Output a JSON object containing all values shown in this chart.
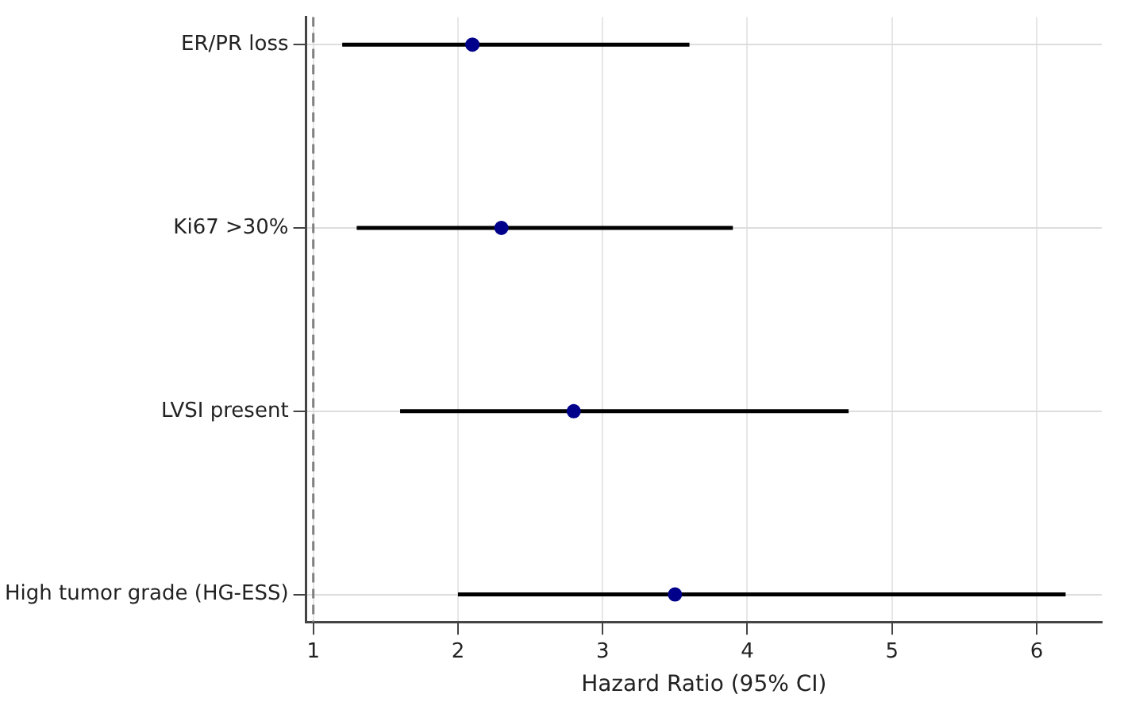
{
  "chart_data": {
    "type": "scatter",
    "orientation": "horizontal",
    "xlabel": "Hazard Ratio (95% CI)",
    "categories": [
      "ER/PR loss",
      "Ki67 >30%",
      "LVSI present",
      "High tumor grade (HG-ESS)"
    ],
    "values": [
      2.1,
      2.3,
      2.8,
      3.5
    ],
    "errors": [
      [
        1.2,
        3.6
      ],
      [
        1.3,
        3.9
      ],
      [
        1.6,
        4.7
      ],
      [
        2.0,
        6.2
      ]
    ],
    "color": "#00008b",
    "marker": "circle",
    "xlim": [
      0.95,
      6.45
    ],
    "xticks": [
      1,
      2,
      3,
      4,
      5,
      6
    ],
    "ref_lines": [
      {
        "axis": "x",
        "value": 1,
        "color": "#808080",
        "line_style": "dashed"
      }
    ],
    "grid": true,
    "legend": false
  }
}
